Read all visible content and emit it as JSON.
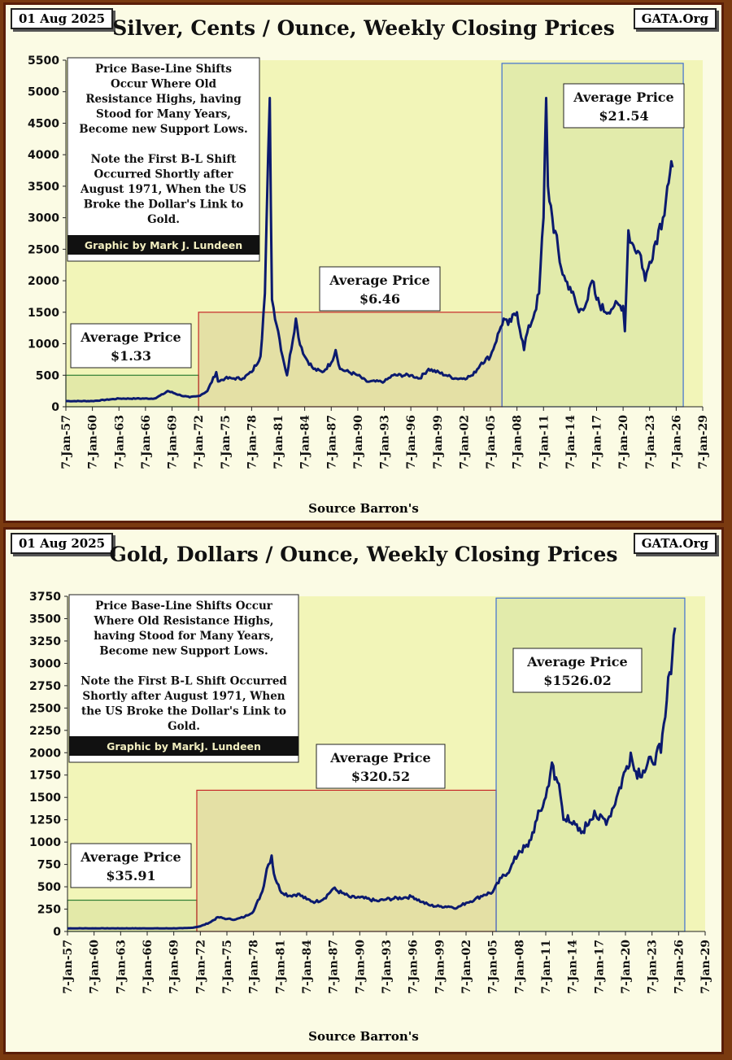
{
  "silver": {
    "date": "01 Aug 2025",
    "site": "GATA.Org",
    "title": "Silver, Cents / Ounce, Weekly Closing Prices",
    "source": "Source Barron's",
    "note_lines": [
      "Price Base-Line Shifts",
      "Occur Where Old",
      "Resistance Highs,  having",
      "Stood for Many Years,",
      "Become new Support Lows.",
      "",
      "Note the First B-L Shift",
      "Occurred Shortly after",
      "August 1971, When the US",
      "Broke the Dollar's Link to",
      "Gold."
    ],
    "credit": "Graphic by Mark J. Lundeen",
    "averages": [
      {
        "label": "Average Price",
        "value": "$1.33"
      },
      {
        "label": "Average Price",
        "value": "$6.46"
      },
      {
        "label": "Average Price",
        "value": "$21.54"
      }
    ]
  },
  "gold": {
    "date": "01 Aug 2025",
    "site": "GATA.Org",
    "title": "Gold, Dollars / Ounce, Weekly Closing Prices",
    "source": "Source Barron's",
    "note_lines": [
      "Price Base-Line Shifts Occur",
      "Where Old Resistance Highs,",
      "having Stood for Many Years,",
      "Become new Support Lows.",
      "",
      "Note the First B-L Shift Occurred",
      "Shortly after August 1971, When",
      "the US Broke the Dollar's Link to",
      "Gold."
    ],
    "credit": "Graphic by MarkJ. Lundeen",
    "averages": [
      {
        "label": "Average  Price",
        "value": "$35.91"
      },
      {
        "label": "Average  Price",
        "value": "$320.52"
      },
      {
        "label": "Average  Price",
        "value": "$1526.02"
      }
    ]
  },
  "colors": {
    "line": "#0b1a6e",
    "zone1": "#2e7d32",
    "zone2": "#c62828",
    "zone3": "#3f6fd0",
    "plot_bg": "#f2f5b8"
  },
  "chart_data": [
    {
      "type": "line",
      "series": [
        {
          "x": [
            1957,
            1960,
            1963,
            1965,
            1967,
            1968,
            1968.5,
            1970,
            1971,
            1972,
            1973,
            1974,
            1974.2,
            1975,
            1976,
            1977,
            1978,
            1979,
            1979.5,
            1980.05,
            1980.3,
            1981,
            1981.5,
            1982,
            1983,
            1983.3,
            1984,
            1985,
            1986,
            1987,
            1987.5,
            1988,
            1990,
            1991,
            1993,
            1994,
            1996,
            1997,
            1998,
            2000,
            2001,
            2002,
            2003,
            2004,
            2005,
            2006,
            2006.5,
            2007,
            2008,
            2008.8,
            2009,
            2010,
            2010.5,
            2011,
            2011.3,
            2011.5,
            2012,
            2013,
            2013.5,
            2014,
            2015,
            2016,
            2016.5,
            2017,
            2018,
            2019,
            2020,
            2020.2,
            2020.6,
            2021,
            2022,
            2022.5,
            2023,
            2024,
            2024.5,
            2025,
            2025.6
          ],
          "y": [
            90,
            90,
            130,
            130,
            130,
            200,
            250,
            180,
            150,
            170,
            250,
            550,
            400,
            450,
            450,
            450,
            550,
            800,
            1800,
            4900,
            1700,
            1200,
            800,
            500,
            1400,
            1100,
            800,
            600,
            550,
            700,
            900,
            600,
            500,
            400,
            400,
            500,
            500,
            450,
            600,
            500,
            450,
            450,
            500,
            700,
            800,
            1200,
            1400,
            1300,
            1500,
            900,
            1100,
            1500,
            1800,
            3000,
            4900,
            3500,
            3000,
            2200,
            2000,
            1900,
            1500,
            1700,
            2000,
            1700,
            1500,
            1600,
            1600,
            1200,
            2800,
            2600,
            2400,
            2000,
            2300,
            2800,
            3000,
            3500,
            3800
          ]
        }
      ],
      "ylim": [
        0,
        5500
      ],
      "yticks": [
        0,
        500,
        1000,
        1500,
        2000,
        2500,
        3000,
        3500,
        4000,
        4500,
        5000,
        5500
      ],
      "xtick_labels": [
        "7-Jan-57",
        "7-Jan-60",
        "7-Jan-63",
        "7-Jan-66",
        "7-Jan-69",
        "7-Jan-72",
        "7-Jan-75",
        "7-Jan-78",
        "7-Jan-81",
        "7-Jan-84",
        "7-Jan-87",
        "7-Jan-90",
        "7-Jan-93",
        "7-Jan-96",
        "7-Jan-99",
        "7-Jan-02",
        "7-Jan-05",
        "7-Jan-08",
        "7-Jan-11",
        "7-Jan-14",
        "7-Jan-17",
        "7-Jan-20",
        "7-Jan-23",
        "7-Jan-26",
        "7-Jan-29"
      ],
      "xlim": [
        1957,
        2029
      ],
      "zones": [
        {
          "x": [
            1957,
            1972
          ],
          "y": 500
        },
        {
          "x": [
            1972,
            2006.3
          ],
          "y": 1500
        },
        {
          "x": [
            2006.3,
            2026.8
          ],
          "y": 5450
        }
      ]
    },
    {
      "type": "line",
      "series": [
        {
          "x": [
            1957,
            1968,
            1970,
            1971,
            1972,
            1973,
            1974,
            1975,
            1976,
            1977,
            1978,
            1979,
            1979.5,
            1980.05,
            1980.3,
            1981,
            1982,
            1983,
            1984,
            1985,
            1986,
            1987,
            1988,
            1989,
            1990,
            1992,
            1993,
            1995,
            1996,
            1997,
            1998,
            1999,
            2000,
            2001,
            2002,
            2003,
            2004,
            2005,
            2006,
            2007,
            2008,
            2009,
            2010,
            2011,
            2011.7,
            2012,
            2012.5,
            2013,
            2013.5,
            2014,
            2015,
            2016,
            2016.5,
            2017,
            2018,
            2019,
            2020,
            2020.6,
            2021,
            2022,
            2023,
            2023.5,
            2024,
            2024.5,
            2025,
            2025.6
          ],
          "y": [
            35,
            35,
            36,
            41,
            58,
            97,
            160,
            140,
            135,
            165,
            226,
            450,
            700,
            850,
            650,
            460,
            400,
            420,
            360,
            330,
            370,
            480,
            430,
            380,
            380,
            340,
            360,
            380,
            390,
            330,
            290,
            280,
            280,
            265,
            320,
            360,
            410,
            440,
            600,
            700,
            900,
            950,
            1250,
            1500,
            1890,
            1700,
            1650,
            1250,
            1300,
            1200,
            1100,
            1250,
            1350,
            1250,
            1250,
            1500,
            1800,
            2000,
            1800,
            1800,
            1900,
            2000,
            2000,
            2400,
            2900,
            3400
          ]
        }
      ],
      "ylim": [
        0,
        3750
      ],
      "yticks": [
        0,
        250,
        500,
        750,
        1000,
        1250,
        1500,
        1750,
        2000,
        2250,
        2500,
        2750,
        3000,
        3250,
        3500,
        3750
      ],
      "xtick_labels": [
        "7-Jan-57",
        "7-Jan-60",
        "7-Jan-63",
        "7-Jan-66",
        "7-Jan-69",
        "7-Jan-72",
        "7-Jan-75",
        "7-Jan-78",
        "7-Jan-81",
        "7-Jan-84",
        "7-Jan-87",
        "7-Jan-90",
        "7-Jan-93",
        "7-Jan-96",
        "7-Jan-99",
        "7-Jan-02",
        "7-Jan-05",
        "7-Jan-08",
        "7-Jan-11",
        "7-Jan-14",
        "7-Jan-17",
        "7-Jan-20",
        "7-Jan-23",
        "7-Jan-26",
        "7-Jan-29"
      ],
      "xlim": [
        1957,
        2029
      ],
      "zones": [
        {
          "x": [
            1957,
            1971.6
          ],
          "y": 350
        },
        {
          "x": [
            1971.6,
            2005.4
          ],
          "y": 1580
        },
        {
          "x": [
            2005.4,
            2026.7
          ],
          "y": 3730
        }
      ]
    }
  ]
}
